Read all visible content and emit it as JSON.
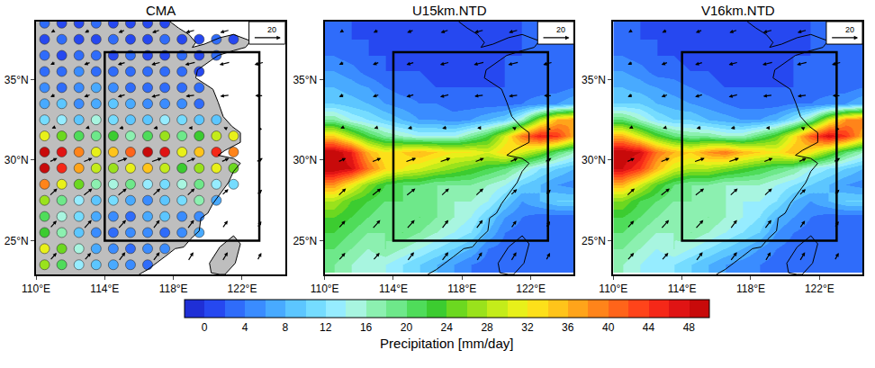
{
  "colorbar": {
    "title": "Precipitation [mm/day]",
    "range": [
      -2,
      50
    ],
    "ticks": [
      0,
      4,
      8,
      12,
      16,
      20,
      24,
      28,
      32,
      36,
      40,
      44,
      48
    ],
    "colors": [
      "#1f2fd6",
      "#2648f0",
      "#2f6cfa",
      "#3a8cff",
      "#48aaff",
      "#5cc6ff",
      "#75dcff",
      "#96ecff",
      "#a8f5e0",
      "#8cf0b0",
      "#6ee88a",
      "#4fdc5a",
      "#3ccc30",
      "#6cd820",
      "#9ae21c",
      "#c4ec1a",
      "#e8f01a",
      "#fde01a",
      "#ffc41a",
      "#ffa41a",
      "#ff841a",
      "#ff641a",
      "#ff441a",
      "#f52818",
      "#e01414",
      "#c80a0a"
    ]
  },
  "coastline": [
    {
      "lon": [
        117.8,
        118.3,
        118.9,
        119.3,
        119.1,
        119.8,
        120.7,
        121.5,
        122.5,
        122.2,
        121.5,
        120.6,
        120.2,
        119.4,
        119.3,
        120.3,
        120.6,
        120.9,
        121.4,
        121.9,
        121.9,
        121.0,
        120.6,
        121.5,
        121.9,
        121.5,
        121.2,
        120.8,
        120.3,
        120.0,
        119.6,
        119.5,
        119.0,
        118.6,
        118.1,
        117.5,
        117.0,
        116.5,
        116.0
      ],
      "lat": [
        38.6,
        38.2,
        37.8,
        37.3,
        37.0,
        37.2,
        37.6,
        37.8,
        37.4,
        37.0,
        36.8,
        36.5,
        36.2,
        35.6,
        35.1,
        34.4,
        33.6,
        32.7,
        32.1,
        31.7,
        31.1,
        30.6,
        30.3,
        30.1,
        29.8,
        29.3,
        28.6,
        28.0,
        27.3,
        26.7,
        26.4,
        25.6,
        25.1,
        24.6,
        24.5,
        24.0,
        23.6,
        23.2,
        22.9
      ]
    },
    {
      "lon": [
        121.5,
        121.9,
        121.6,
        121.0,
        120.7,
        120.2,
        120.1,
        120.7,
        121.5
      ],
      "lat": [
        25.3,
        24.8,
        23.6,
        22.9,
        22.9,
        23.0,
        23.6,
        24.6,
        25.3
      ]
    }
  ],
  "wind": {
    "ref_vector": 20,
    "lon": [
      111,
      113,
      115,
      117,
      119,
      121,
      123
    ],
    "lat": [
      24,
      26,
      28,
      30,
      32,
      34,
      36,
      38
    ],
    "u": [
      [
        5,
        5,
        5,
        5,
        4,
        4,
        3
      ],
      [
        5,
        6,
        6,
        5,
        5,
        4,
        3
      ],
      [
        6,
        7,
        7,
        6,
        6,
        5,
        4
      ],
      [
        6,
        7,
        8,
        8,
        7,
        6,
        5
      ],
      [
        -2,
        -3,
        -4,
        -4,
        -3,
        -2,
        -1
      ],
      [
        -4,
        -5,
        -6,
        -7,
        -7,
        -7,
        -6
      ],
      [
        -4,
        -5,
        -6,
        -7,
        -8,
        -8,
        -7
      ],
      [
        -3,
        -4,
        -5,
        -6,
        -7,
        -7,
        -6
      ]
    ],
    "v": [
      [
        6,
        6,
        7,
        7,
        7,
        7,
        6
      ],
      [
        6,
        7,
        7,
        7,
        7,
        6,
        5
      ],
      [
        6,
        6,
        6,
        6,
        6,
        5,
        4
      ],
      [
        3,
        3,
        3,
        3,
        3,
        3,
        3
      ],
      [
        -1,
        -1,
        -1,
        -1,
        0,
        1,
        2
      ],
      [
        -2,
        -2,
        -2,
        -2,
        -1,
        -1,
        0
      ],
      [
        -2,
        -2,
        -2,
        -2,
        -2,
        -2,
        -2
      ],
      [
        -2,
        -2,
        -2,
        -2,
        -2,
        -2,
        -2
      ]
    ]
  },
  "box": {
    "lon": [
      114,
      123
    ],
    "lat": [
      25,
      36.7
    ]
  },
  "chart_data": [
    {
      "type": "scatter",
      "title": "CMA",
      "x": [
        110.5,
        111.5,
        112.5,
        113.5,
        114.5,
        115.5,
        116.5,
        117.5,
        118.5,
        119.5,
        120.5,
        121.5,
        122.5,
        123.5,
        124.5
      ],
      "y": [
        23.5,
        24.5,
        25.5,
        26.5,
        27.5,
        28.5,
        29.5,
        30.5,
        31.5,
        32.5,
        33.5,
        34.5,
        35.5,
        36.5,
        37.5,
        38.5
      ],
      "z": [
        [
          26,
          20,
          12,
          8,
          6,
          4,
          3,
          null,
          null,
          null,
          null,
          null,
          null,
          null,
          null
        ],
        [
          30,
          24,
          14,
          6,
          4,
          3,
          5,
          4,
          null,
          null,
          null,
          null,
          null,
          null,
          null
        ],
        [
          22,
          16,
          8,
          4,
          3,
          5,
          4,
          3,
          4,
          6,
          null,
          null,
          null,
          null,
          null
        ],
        [
          20,
          14,
          10,
          6,
          4,
          3,
          6,
          8,
          5,
          4,
          null,
          null,
          null,
          null,
          null
        ],
        [
          26,
          18,
          12,
          8,
          10,
          6,
          4,
          8,
          10,
          16,
          6,
          null,
          null,
          null,
          null
        ],
        [
          38,
          30,
          24,
          16,
          14,
          18,
          12,
          10,
          14,
          18,
          12,
          10,
          null,
          null,
          null
        ],
        [
          50,
          44,
          36,
          28,
          26,
          30,
          34,
          28,
          22,
          26,
          30,
          24,
          null,
          null,
          null
        ],
        [
          48,
          46,
          38,
          30,
          34,
          40,
          48,
          46,
          30,
          34,
          44,
          38,
          null,
          null,
          null
        ],
        [
          30,
          24,
          20,
          18,
          22,
          16,
          20,
          26,
          18,
          22,
          28,
          30,
          null,
          null,
          null
        ],
        [
          10,
          12,
          8,
          14,
          10,
          9,
          8,
          12,
          10,
          8,
          9,
          null,
          null,
          null,
          null
        ],
        [
          6,
          8,
          5,
          7,
          9,
          6,
          4,
          5,
          4,
          3,
          null,
          null,
          null,
          null,
          null
        ],
        [
          4,
          3,
          5,
          6,
          4,
          3,
          3,
          2,
          3,
          2,
          null,
          null,
          null,
          null,
          null
        ],
        [
          3,
          2,
          4,
          2,
          3,
          2,
          2,
          3,
          2,
          1,
          null,
          null,
          null,
          null,
          null
        ],
        [
          2,
          1,
          3,
          2,
          1,
          2,
          1,
          1,
          2,
          1,
          2,
          null,
          null,
          null,
          null
        ],
        [
          1,
          2,
          1,
          1,
          2,
          1,
          1,
          2,
          1,
          1,
          2,
          1,
          null,
          null,
          null
        ],
        [
          2,
          1,
          1,
          2,
          1,
          1,
          1,
          1,
          null,
          null,
          null,
          null,
          null,
          null,
          null
        ]
      ],
      "xlim": [
        110,
        124.5
      ],
      "ylim": [
        22.9,
        38.6
      ],
      "xticks": [
        {
          "value": 110,
          "label": "110°E"
        },
        {
          "value": 114,
          "label": "114°E"
        },
        {
          "value": 118,
          "label": "118°E"
        },
        {
          "value": 122,
          "label": "122°E"
        }
      ],
      "yticks": [
        {
          "value": 25,
          "label": "25°N"
        },
        {
          "value": 30,
          "label": "30°N"
        },
        {
          "value": 35,
          "label": "35°N"
        }
      ]
    },
    {
      "type": "heatmap",
      "title": "U15km.NTD",
      "x": [
        110.5,
        111.5,
        112.5,
        113.5,
        114.5,
        115.5,
        116.5,
        117.5,
        118.5,
        119.5,
        120.5,
        121.5,
        122.5,
        123.5,
        124.5
      ],
      "y": [
        23.5,
        24.5,
        25.5,
        26.5,
        27.5,
        28.5,
        29.5,
        30.5,
        31.5,
        32.5,
        33.5,
        34.5,
        35.5,
        36.5,
        37.5,
        38.5
      ],
      "z": [
        [
          18,
          16,
          14,
          14,
          12,
          10,
          8,
          6,
          4,
          3,
          3,
          3,
          3,
          3,
          3
        ],
        [
          20,
          18,
          16,
          18,
          16,
          14,
          12,
          10,
          8,
          4,
          3,
          3,
          3,
          3,
          3
        ],
        [
          22,
          20,
          18,
          18,
          20,
          18,
          16,
          14,
          12,
          8,
          4,
          3,
          3,
          3,
          3
        ],
        [
          24,
          22,
          20,
          18,
          18,
          20,
          18,
          16,
          14,
          10,
          6,
          4,
          3,
          3,
          3
        ],
        [
          28,
          24,
          22,
          20,
          20,
          18,
          18,
          16,
          16,
          14,
          10,
          6,
          8,
          10,
          10
        ],
        [
          38,
          32,
          26,
          22,
          20,
          20,
          18,
          18,
          18,
          16,
          14,
          10,
          8,
          6,
          5
        ],
        [
          50,
          48,
          40,
          34,
          32,
          30,
          28,
          26,
          24,
          22,
          20,
          16,
          12,
          10,
          8
        ],
        [
          50,
          46,
          36,
          32,
          34,
          36,
          34,
          32,
          32,
          30,
          34,
          30,
          26,
          20,
          16
        ],
        [
          34,
          28,
          22,
          18,
          16,
          14,
          14,
          14,
          18,
          22,
          30,
          40,
          46,
          44,
          36
        ],
        [
          18,
          14,
          12,
          10,
          8,
          6,
          6,
          5,
          6,
          8,
          10,
          16,
          28,
          36,
          38
        ],
        [
          10,
          9,
          8,
          6,
          5,
          4,
          4,
          3,
          3,
          3,
          3,
          4,
          5,
          6,
          8
        ],
        [
          8,
          7,
          6,
          4,
          3,
          3,
          2,
          2,
          2,
          2,
          2,
          3,
          3,
          3,
          4
        ],
        [
          6,
          5,
          3,
          2,
          2,
          2,
          1,
          1,
          1,
          1,
          2,
          2,
          2,
          3,
          3
        ],
        [
          4,
          3,
          2,
          2,
          1,
          1,
          1,
          1,
          1,
          1,
          2,
          2,
          2,
          2,
          2
        ],
        [
          3,
          2,
          2,
          1,
          1,
          1,
          1,
          1,
          1,
          1,
          1,
          2,
          2,
          2,
          2
        ],
        [
          2,
          2,
          1,
          1,
          1,
          1,
          1,
          1,
          1,
          1,
          1,
          2,
          2,
          2,
          2
        ]
      ],
      "xlim": [
        110,
        124.5
      ],
      "ylim": [
        22.9,
        38.6
      ],
      "xticks": [
        {
          "value": 110,
          "label": "110°E"
        },
        {
          "value": 114,
          "label": "114°E"
        },
        {
          "value": 118,
          "label": "118°E"
        },
        {
          "value": 122,
          "label": "122°E"
        }
      ],
      "yticks": [
        {
          "value": 25,
          "label": "25°N"
        },
        {
          "value": 30,
          "label": "30°N"
        },
        {
          "value": 35,
          "label": "35°N"
        }
      ]
    },
    {
      "type": "heatmap",
      "title": "V16km.NTD",
      "x": [
        110.5,
        111.5,
        112.5,
        113.5,
        114.5,
        115.5,
        116.5,
        117.5,
        118.5,
        119.5,
        120.5,
        121.5,
        122.5,
        123.5,
        124.5
      ],
      "y": [
        23.5,
        24.5,
        25.5,
        26.5,
        27.5,
        28.5,
        29.5,
        30.5,
        31.5,
        32.5,
        33.5,
        34.5,
        35.5,
        36.5,
        37.5,
        38.5
      ],
      "z": [
        [
          16,
          14,
          12,
          12,
          10,
          8,
          6,
          5,
          4,
          3,
          3,
          3,
          3,
          3,
          3
        ],
        [
          18,
          16,
          14,
          16,
          14,
          12,
          10,
          8,
          6,
          4,
          3,
          3,
          3,
          3,
          3
        ],
        [
          20,
          18,
          16,
          16,
          18,
          16,
          14,
          12,
          10,
          6,
          4,
          3,
          3,
          3,
          3
        ],
        [
          22,
          20,
          18,
          16,
          16,
          18,
          16,
          14,
          12,
          8,
          6,
          4,
          3,
          3,
          3
        ],
        [
          26,
          22,
          20,
          18,
          18,
          16,
          16,
          14,
          14,
          12,
          8,
          6,
          8,
          10,
          10
        ],
        [
          36,
          30,
          24,
          20,
          18,
          18,
          16,
          16,
          16,
          14,
          12,
          10,
          8,
          6,
          5
        ],
        [
          48,
          44,
          36,
          30,
          28,
          28,
          26,
          24,
          22,
          20,
          18,
          14,
          12,
          10,
          8
        ],
        [
          50,
          48,
          40,
          36,
          34,
          38,
          40,
          36,
          34,
          32,
          36,
          32,
          26,
          20,
          16
        ],
        [
          36,
          30,
          24,
          20,
          18,
          18,
          16,
          16,
          20,
          24,
          32,
          42,
          48,
          44,
          36
        ],
        [
          20,
          16,
          12,
          10,
          10,
          8,
          7,
          6,
          6,
          8,
          12,
          18,
          30,
          38,
          40
        ],
        [
          10,
          10,
          8,
          7,
          6,
          5,
          4,
          3,
          3,
          3,
          4,
          4,
          5,
          6,
          8
        ],
        [
          8,
          7,
          6,
          5,
          4,
          3,
          2,
          2,
          2,
          2,
          2,
          3,
          3,
          3,
          4
        ],
        [
          6,
          5,
          3,
          3,
          2,
          2,
          1,
          1,
          1,
          1,
          2,
          2,
          2,
          3,
          3
        ],
        [
          4,
          3,
          2,
          2,
          1,
          1,
          1,
          1,
          1,
          1,
          2,
          2,
          2,
          2,
          2
        ],
        [
          3,
          2,
          2,
          1,
          1,
          1,
          1,
          1,
          1,
          1,
          1,
          2,
          2,
          2,
          2
        ],
        [
          2,
          2,
          1,
          1,
          1,
          1,
          1,
          1,
          1,
          1,
          1,
          2,
          2,
          2,
          2
        ]
      ],
      "xlim": [
        110,
        124.5
      ],
      "ylim": [
        22.9,
        38.6
      ],
      "xticks": [
        {
          "value": 110,
          "label": "110°E"
        },
        {
          "value": 114,
          "label": "114°E"
        },
        {
          "value": 118,
          "label": "118°E"
        },
        {
          "value": 122,
          "label": "122°E"
        }
      ],
      "yticks": [
        {
          "value": 25,
          "label": "25°N"
        },
        {
          "value": 30,
          "label": "30°N"
        },
        {
          "value": 35,
          "label": "35°N"
        }
      ]
    }
  ]
}
